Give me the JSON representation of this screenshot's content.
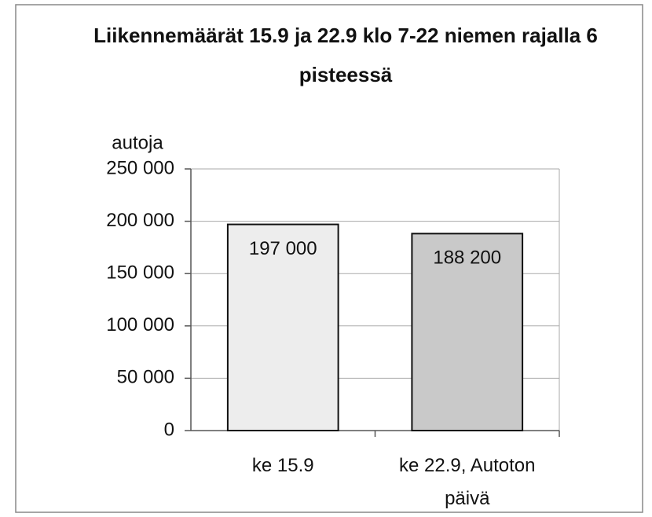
{
  "chart_data": {
    "type": "bar",
    "title": "Liikennemäärät 15.9 ja 22.9 klo 7-22 niemen rajalla 6 pisteessä",
    "y_label": "autoja",
    "categories": [
      "ke 15.9",
      "ke 22.9, Autoton päivä"
    ],
    "values": [
      197000,
      188200
    ],
    "value_labels": [
      "197 000",
      "188 200"
    ],
    "colors": [
      "#ededed",
      "#c9c9c9"
    ],
    "ylim": [
      0,
      250000
    ],
    "yticks": [
      0,
      {
        "value": 50000,
        "label": "50 000"
      },
      {
        "value": 100000,
        "label": "100 000"
      },
      {
        "value": 150000,
        "label": "150 000"
      },
      {
        "value": 200000,
        "label": "200 000"
      },
      {
        "value": 250000,
        "label": "250 000"
      }
    ],
    "grid": true
  }
}
